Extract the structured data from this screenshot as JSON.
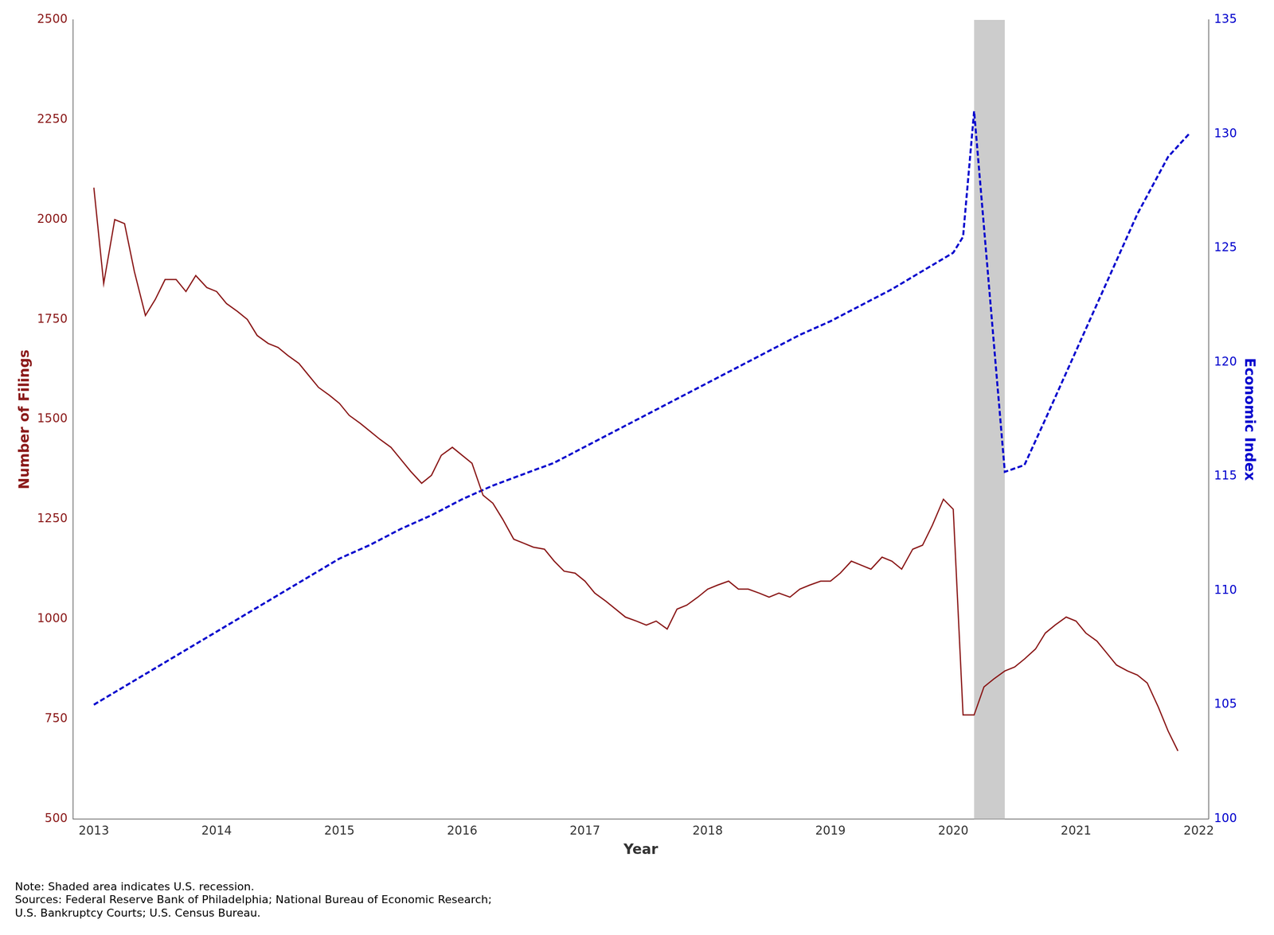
{
  "chart_data": {
    "type": "line",
    "xlabel": "Year",
    "ylabel": "Number of Filings",
    "y2label": "Economic Index",
    "xlim": [
      2012.83,
      2022.08
    ],
    "xticks": [
      2013,
      2014,
      2015,
      2016,
      2017,
      2018,
      2019,
      2020,
      2021,
      2022
    ],
    "ylim": [
      500,
      2500
    ],
    "yticks": [
      500,
      750,
      1000,
      1250,
      1500,
      1750,
      2000,
      2250,
      2500
    ],
    "y2lim": [
      100,
      135
    ],
    "y2ticks": [
      100,
      105,
      110,
      115,
      120,
      125,
      130,
      135
    ],
    "grid": false,
    "series": [
      {
        "color": "#8B1A1A",
        "line_style": "solid",
        "x": [
          2013.0,
          2013.08,
          2013.17,
          2013.25,
          2013.33,
          2013.42,
          2013.5,
          2013.58,
          2013.67,
          2013.75,
          2013.83,
          2013.92,
          2014.0,
          2014.08,
          2014.17,
          2014.25,
          2014.33,
          2014.42,
          2014.5,
          2014.58,
          2014.67,
          2014.75,
          2014.83,
          2014.92,
          2015.0,
          2015.08,
          2015.17,
          2015.25,
          2015.33,
          2015.42,
          2015.5,
          2015.58,
          2015.67,
          2015.75,
          2015.83,
          2015.92,
          2016.0,
          2016.08,
          2016.17,
          2016.25,
          2016.33,
          2016.42,
          2016.5,
          2016.58,
          2016.67,
          2016.75,
          2016.83,
          2016.92,
          2017.0,
          2017.08,
          2017.17,
          2017.25,
          2017.33,
          2017.42,
          2017.5,
          2017.58,
          2017.67,
          2017.75,
          2017.83,
          2017.92,
          2018.0,
          2018.08,
          2018.17,
          2018.25,
          2018.33,
          2018.42,
          2018.5,
          2018.58,
          2018.67,
          2018.75,
          2018.83,
          2018.92,
          2019.0,
          2019.08,
          2019.17,
          2019.25,
          2019.33,
          2019.42,
          2019.5,
          2019.58,
          2019.67,
          2019.75,
          2019.83,
          2019.92,
          2020.0,
          2020.08,
          2020.17,
          2020.25,
          2020.33,
          2020.42,
          2020.5,
          2020.58,
          2020.67,
          2020.75,
          2020.83,
          2020.92,
          2021.0,
          2021.08,
          2021.17,
          2021.25,
          2021.33,
          2021.42,
          2021.5,
          2021.58,
          2021.67,
          2021.75,
          2021.83
        ],
        "values": [
          2080,
          1840,
          2000,
          1990,
          1870,
          1760,
          1800,
          1850,
          1850,
          1820,
          1860,
          1830,
          1820,
          1790,
          1770,
          1750,
          1710,
          1690,
          1680,
          1660,
          1640,
          1610,
          1580,
          1560,
          1540,
          1510,
          1490,
          1470,
          1450,
          1430,
          1400,
          1370,
          1340,
          1360,
          1410,
          1430,
          1410,
          1390,
          1310,
          1290,
          1250,
          1200,
          1190,
          1180,
          1175,
          1145,
          1120,
          1115,
          1095,
          1065,
          1045,
          1025,
          1005,
          995,
          985,
          995,
          975,
          1025,
          1035,
          1055,
          1075,
          1085,
          1095,
          1075,
          1075,
          1065,
          1055,
          1065,
          1055,
          1075,
          1085,
          1095,
          1095,
          1115,
          1145,
          1135,
          1125,
          1155,
          1145,
          1125,
          1175,
          1185,
          1235,
          1300,
          1275,
          760,
          760,
          830,
          850,
          870,
          880,
          900,
          925,
          965,
          985,
          1005,
          995,
          965,
          945,
          915,
          885,
          870,
          860,
          840,
          780,
          720,
          670
        ]
      },
      {
        "color": "#0000CD",
        "line_style": "dashed",
        "axis": "y2",
        "x": [
          2013.0,
          2013.25,
          2013.5,
          2013.75,
          2014.0,
          2014.25,
          2014.5,
          2014.75,
          2015.0,
          2015.25,
          2015.5,
          2015.75,
          2016.0,
          2016.25,
          2016.5,
          2016.75,
          2017.0,
          2017.25,
          2017.5,
          2017.75,
          2018.0,
          2018.25,
          2018.5,
          2018.75,
          2019.0,
          2019.25,
          2019.5,
          2019.75,
          2020.0,
          2020.08,
          2020.17,
          2020.42,
          2020.58,
          2020.75,
          2021.0,
          2021.25,
          2021.5,
          2021.75,
          2021.92
        ],
        "values": [
          105.0,
          105.8,
          106.6,
          107.4,
          108.2,
          109.0,
          109.8,
          110.6,
          111.4,
          112.0,
          112.7,
          113.3,
          114.0,
          114.6,
          115.1,
          115.6,
          116.3,
          117.0,
          117.7,
          118.4,
          119.1,
          119.8,
          120.5,
          121.2,
          121.8,
          122.5,
          123.2,
          124.0,
          124.8,
          125.5,
          131.0,
          115.2,
          115.5,
          117.5,
          120.5,
          123.5,
          126.5,
          129.0,
          130.0
        ]
      }
    ],
    "shaded_span": {
      "x": [
        2020.17,
        2020.42
      ],
      "color": "#CCCCCC"
    },
    "note": "Note: Shaded area indicates U.S. recession.\nSources: Federal Reserve Bank of Philadelphia; National Bureau of Economic Research;\nU.S. Bankruptcy Courts; U.S. Census Bureau."
  }
}
